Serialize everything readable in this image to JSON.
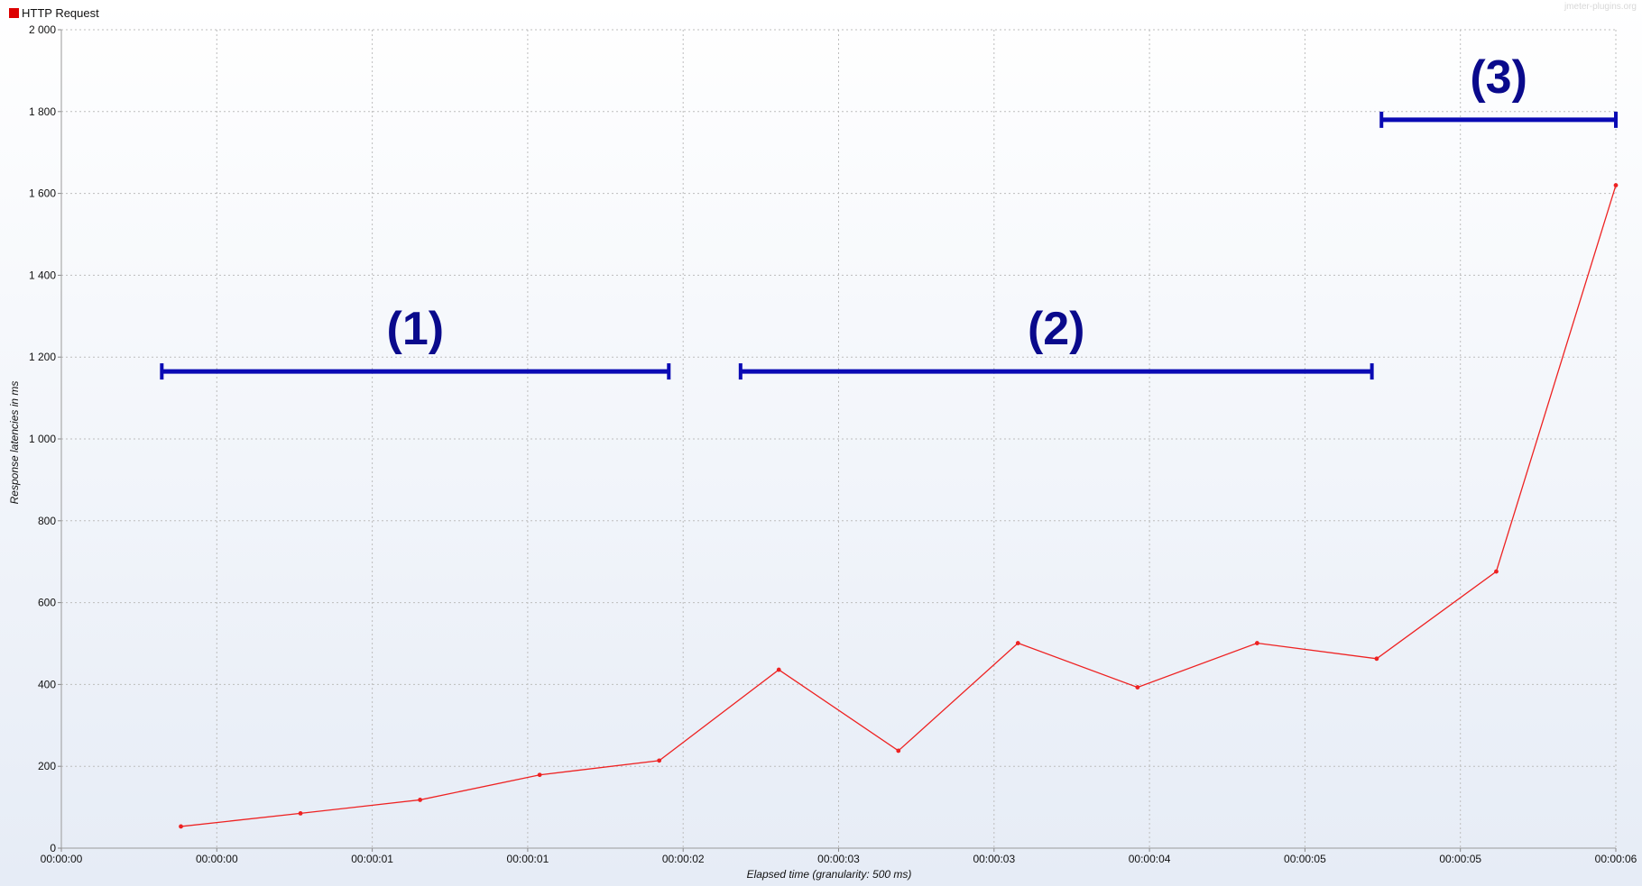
{
  "watermark": "jmeter-plugins.org",
  "colors": {
    "series": "#ee2222",
    "annotation": "#0a0ab4",
    "annotation_text": "#0a0a8c",
    "grid": "#bdbdbd"
  },
  "chart_data": {
    "type": "line",
    "xlabel": "Elapsed time (granularity: 500 ms)",
    "ylabel": "Response latencies in ms",
    "ylim": [
      0,
      2000
    ],
    "xlim": [
      0,
      6.5
    ],
    "grid": true,
    "legend_position": "top-left",
    "y_ticks": [
      {
        "value": 0,
        "label": "0"
      },
      {
        "value": 200,
        "label": "200"
      },
      {
        "value": 400,
        "label": "400"
      },
      {
        "value": 600,
        "label": "600"
      },
      {
        "value": 800,
        "label": "800"
      },
      {
        "value": 1000,
        "label": "1 000"
      },
      {
        "value": 1200,
        "label": "1 200"
      },
      {
        "value": 1400,
        "label": "1 400"
      },
      {
        "value": 1600,
        "label": "1 600"
      },
      {
        "value": 1800,
        "label": "1 800"
      },
      {
        "value": 2000,
        "label": "2 000"
      }
    ],
    "x_ticks": [
      {
        "value": 0,
        "label": "00:00:00"
      },
      {
        "value": 0.65,
        "label": "00:00:00"
      },
      {
        "value": 1.3,
        "label": "00:00:01"
      },
      {
        "value": 1.95,
        "label": "00:00:01"
      },
      {
        "value": 2.6,
        "label": "00:00:02"
      },
      {
        "value": 3.25,
        "label": "00:00:03"
      },
      {
        "value": 3.9,
        "label": "00:00:03"
      },
      {
        "value": 4.55,
        "label": "00:00:04"
      },
      {
        "value": 5.2,
        "label": "00:00:05"
      },
      {
        "value": 5.85,
        "label": "00:00:05"
      },
      {
        "value": 6.5,
        "label": "00:00:06"
      }
    ],
    "series": [
      {
        "name": "HTTP Request",
        "color": "#ee2222",
        "x": [
          0.5,
          1.0,
          1.5,
          2.0,
          2.5,
          3.0,
          3.5,
          4.0,
          4.5,
          5.0,
          5.5,
          6.0,
          6.5
        ],
        "y": [
          53,
          85,
          118,
          179,
          214,
          436,
          238,
          501,
          393,
          501,
          463,
          676,
          1620
        ]
      }
    ],
    "annotations": [
      {
        "label": "(1)",
        "x_start": 0.42,
        "x_end": 2.54,
        "y": 1165
      },
      {
        "label": "(2)",
        "x_start": 2.84,
        "x_end": 5.48,
        "y": 1165
      },
      {
        "label": "(3)",
        "x_start": 5.52,
        "x_end": 6.5,
        "y": 1780
      }
    ]
  }
}
